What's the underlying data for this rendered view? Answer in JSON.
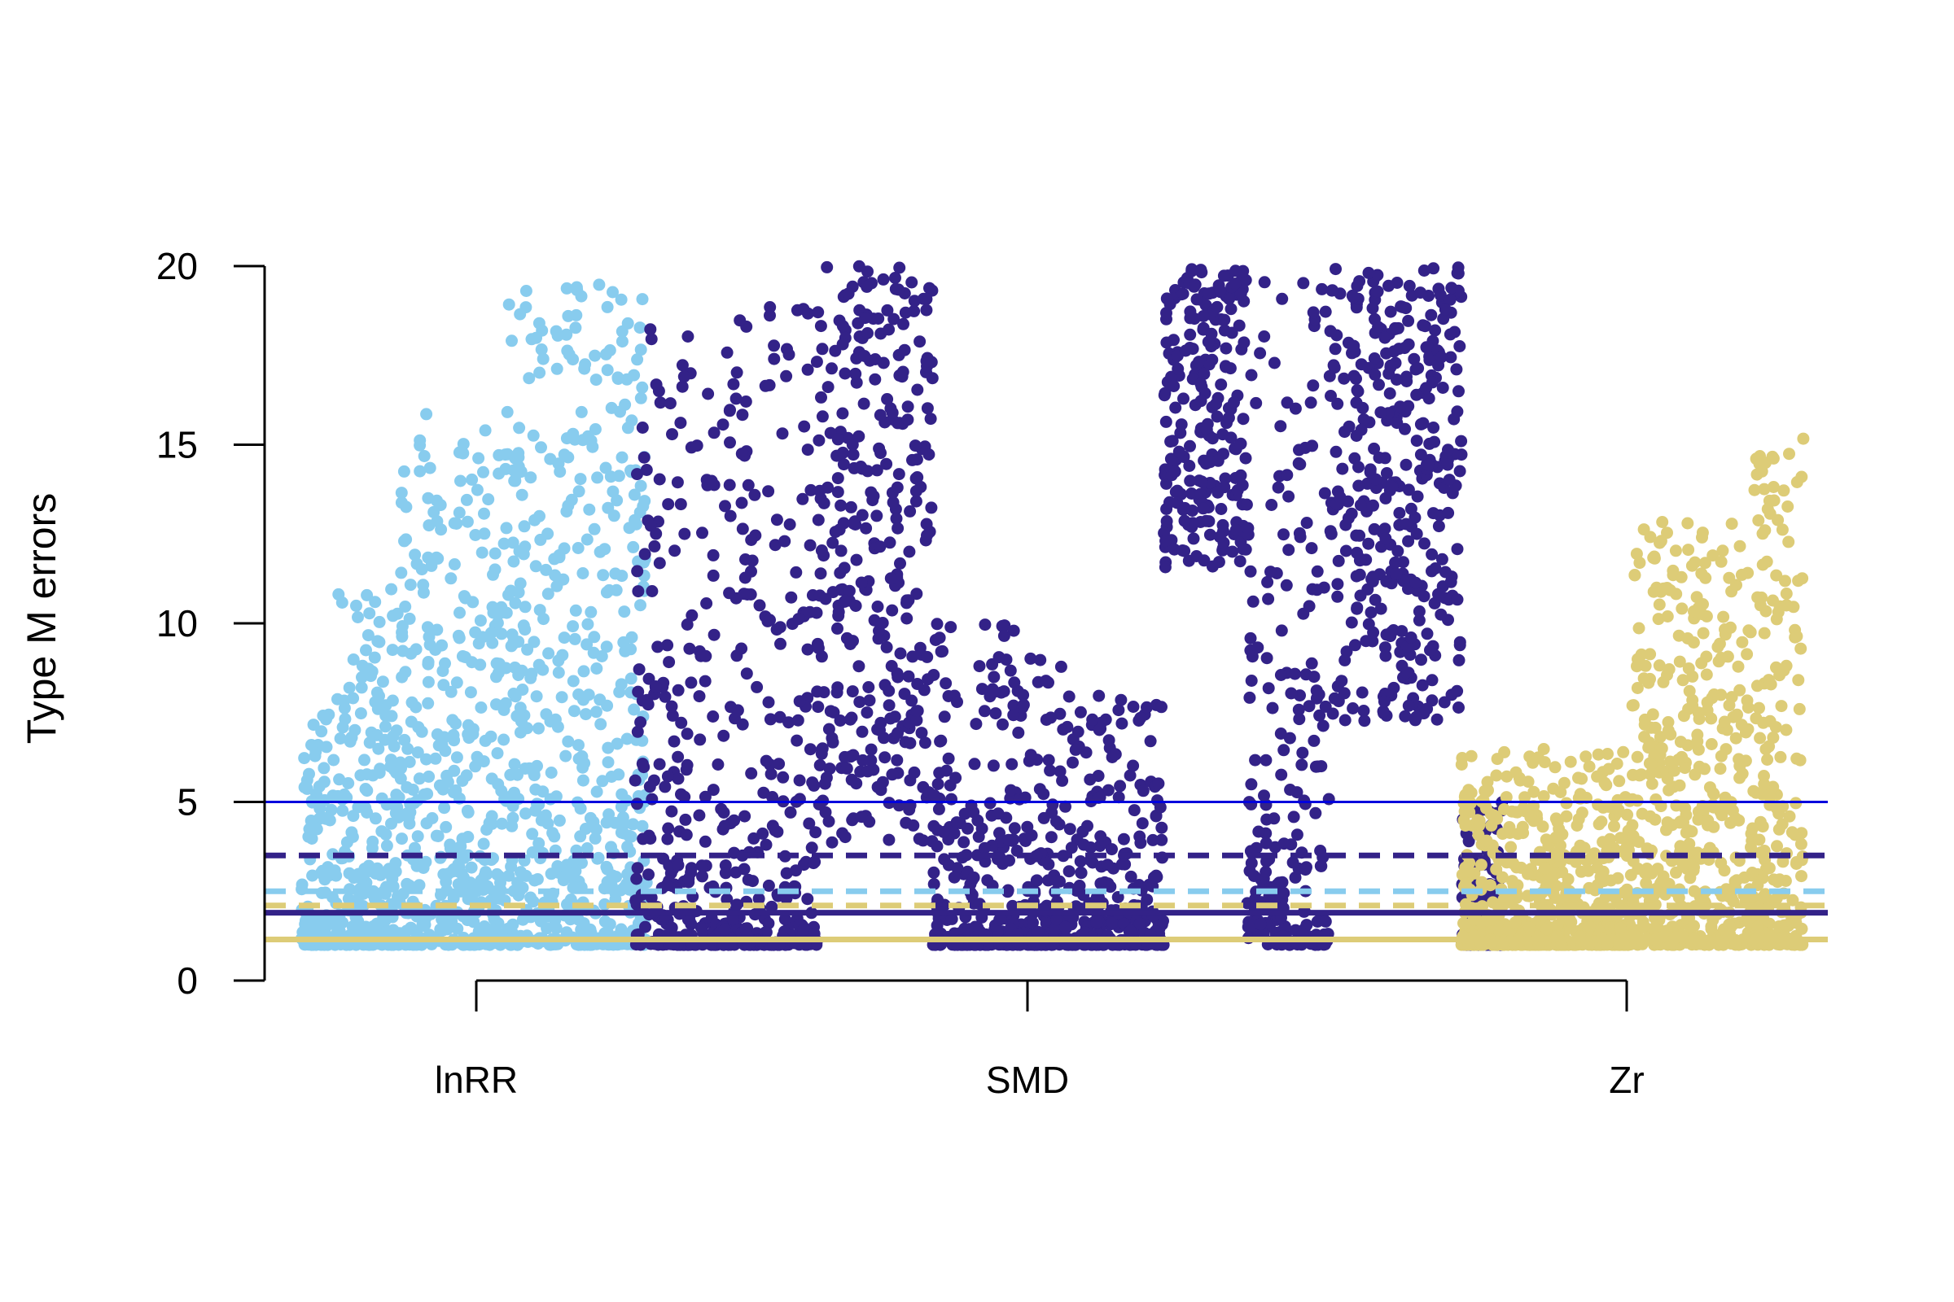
{
  "chart_data": {
    "type": "scatter",
    "title": "",
    "xlabel": "",
    "ylabel": "Type M errors",
    "ylim": [
      0,
      20
    ],
    "yticks": [
      0,
      5,
      10,
      15,
      20
    ],
    "categories": [
      "lnRR",
      "SMD",
      "Zr"
    ],
    "grid": false,
    "legend": "none",
    "colors": {
      "lnRR": "#88ccee",
      "SMD": "#332288",
      "Zr": "#ddcc77",
      "reference_line": "#0000dd"
    },
    "series": [
      {
        "category": "lnRR",
        "color": "#88ccee",
        "clusters": [
          {
            "share": 0.1,
            "y_range": [
              1.0,
              7.5
            ],
            "spread": "low",
            "max": 8
          },
          {
            "share": 0.18,
            "y_range": [
              1.0,
              11.0
            ],
            "spread": "mid",
            "max": 18
          },
          {
            "share": 0.3,
            "y_range": [
              1.0,
              16.0
            ],
            "spread": "mid",
            "max": 20
          },
          {
            "share": 0.42,
            "y_range": [
              1.0,
              19.5
            ],
            "spread": "mid",
            "max": 20
          }
        ]
      },
      {
        "category": "SMD",
        "color": "#332288",
        "clusters": [
          {
            "share": 0.1,
            "y_range": [
              1.0,
              18.5
            ],
            "spread": "low",
            "max": 19
          },
          {
            "share": 0.12,
            "y_range": [
              1.0,
              19.0
            ],
            "spread": "low",
            "max": 19
          },
          {
            "share": 0.14,
            "y_range": [
              1.0,
              20.0
            ],
            "spread": "high",
            "max": 20
          },
          {
            "share": 0.16,
            "y_range": [
              1.0,
              10.0
            ],
            "spread": "low",
            "max": 12
          },
          {
            "share": 0.12,
            "y_range": [
              1.0,
              8.0
            ],
            "spread": "low",
            "max": 10
          },
          {
            "share": 0.1,
            "y_range": [
              10.0,
              20.0
            ],
            "spread": "high",
            "max": 20
          },
          {
            "share": 0.1,
            "y_range": [
              1.0,
              20.0
            ],
            "spread": "mid",
            "max": 20
          },
          {
            "share": 0.16,
            "y_range": [
              5.0,
              20.0
            ],
            "spread": "high",
            "max": 20
          },
          {
            "share": 0.05,
            "y_range": [
              1.0,
              5.0
            ],
            "spread": "low",
            "max": 12
          }
        ]
      },
      {
        "category": "Zr",
        "color": "#ddcc77",
        "clusters": [
          {
            "share": 0.5,
            "y_range": [
              1.0,
              6.5
            ],
            "spread": "low",
            "max": 10
          },
          {
            "share": 0.35,
            "y_range": [
              1.0,
              13.0
            ],
            "spread": "mid",
            "max": 19.5
          },
          {
            "share": 0.15,
            "y_range": [
              1.0,
              15.5
            ],
            "spread": "mid",
            "max": 16
          }
        ]
      }
    ],
    "reference_lines": [
      {
        "y": 5.0,
        "color": "#0000dd",
        "style": "solid"
      },
      {
        "y": 3.5,
        "color": "#332288",
        "style": "dashed"
      },
      {
        "y": 2.5,
        "color": "#88ccee",
        "style": "dashed"
      },
      {
        "y": 2.1,
        "color": "#ddcc77",
        "style": "dashed"
      },
      {
        "y": 1.9,
        "color": "#332288",
        "style": "solid"
      },
      {
        "y": 1.15,
        "color": "#ddcc77",
        "style": "solid"
      }
    ]
  }
}
